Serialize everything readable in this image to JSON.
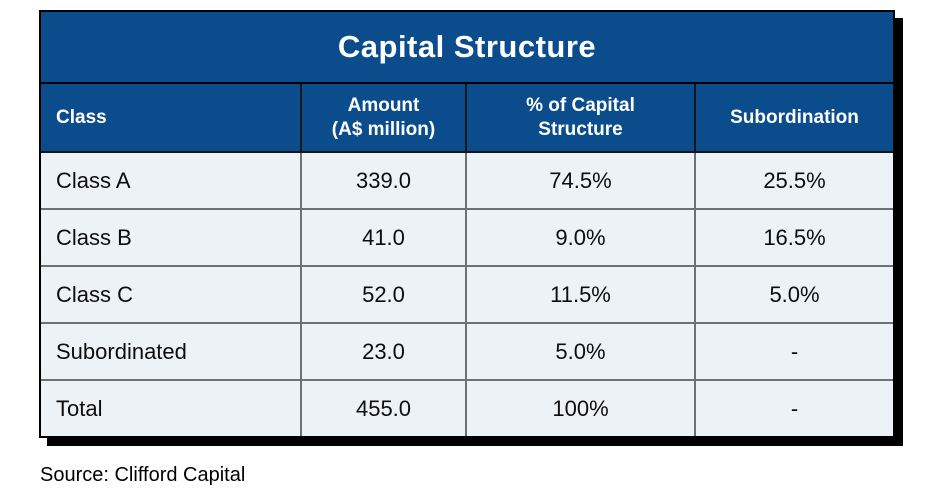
{
  "chart_data": {
    "type": "table",
    "title": "Capital Structure",
    "columns": [
      "Class",
      "Amount (A$ million)",
      "% of Capital Structure",
      "Subordination"
    ],
    "rows": [
      [
        "Class A",
        "339.0",
        "74.5%",
        "25.5%"
      ],
      [
        "Class B",
        "41.0",
        "9.0%",
        "16.5%"
      ],
      [
        "Class C",
        "52.0",
        "11.5%",
        "5.0%"
      ],
      [
        "Subordinated",
        "23.0",
        "5.0%",
        "-"
      ],
      [
        "Total",
        "455.0",
        "100%",
        "-"
      ]
    ]
  },
  "table": {
    "headers": [
      {
        "line1": "Class",
        "line2": ""
      },
      {
        "line1": "Amount",
        "line2": "(A$ million)"
      },
      {
        "line1": "% of Capital",
        "line2": "Structure"
      },
      {
        "line1": "Subordination",
        "line2": ""
      }
    ]
  },
  "source_note": "Source: Clifford Capital",
  "colors": {
    "header_bg": "#0b4d8c",
    "header_text": "#ffffff",
    "body_bg": "#edf2f7",
    "body_text": "#0d0d0d",
    "grid_line": "#6d7175",
    "outer_border": "#000000",
    "shadow": "#000000"
  }
}
